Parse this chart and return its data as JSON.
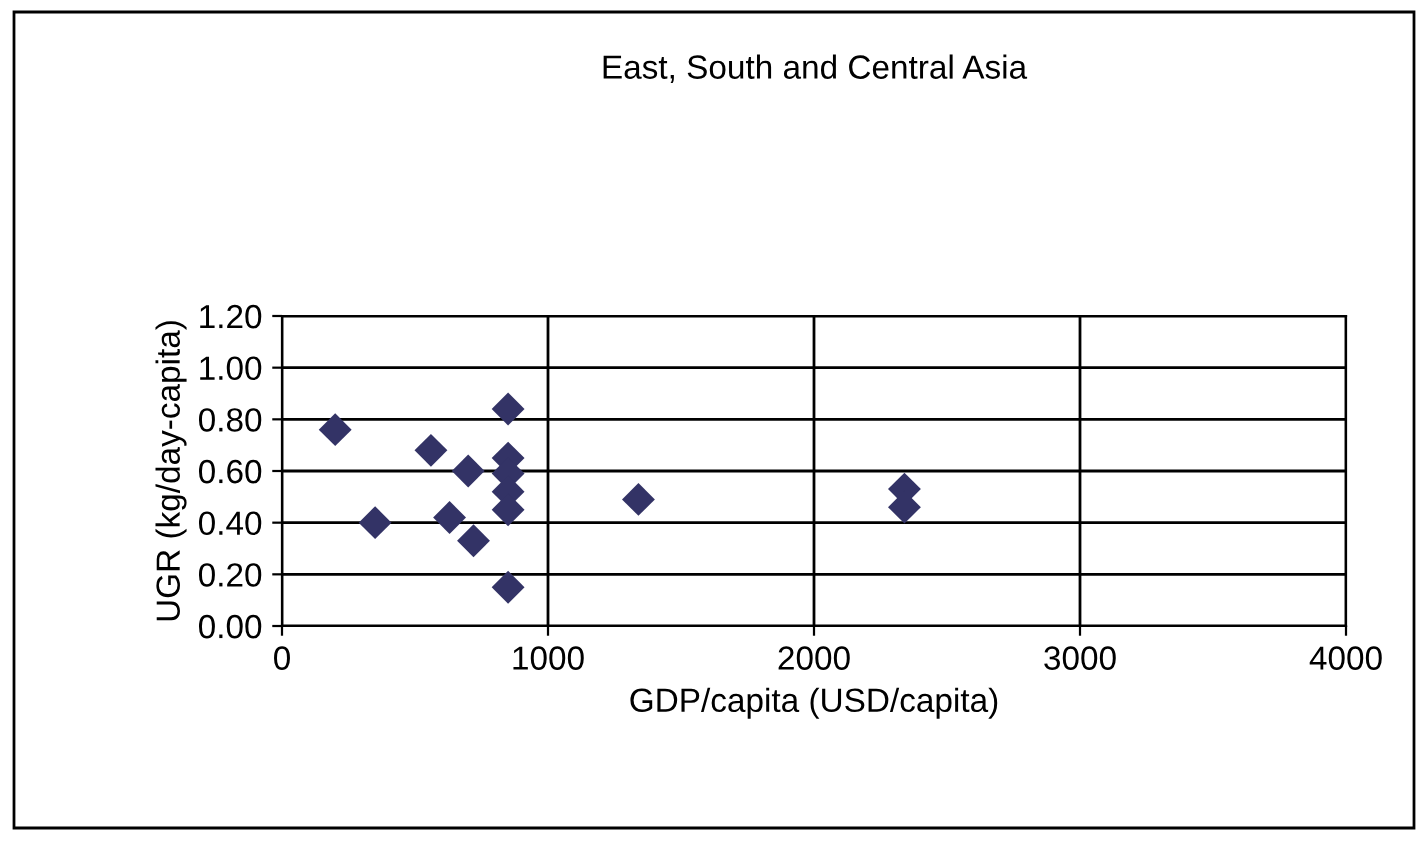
{
  "chart_data": {
    "type": "scatter",
    "title": "East, South and Central Asia",
    "xlabel": "GDP/capita (USD/capita)",
    "ylabel": "UGR (kg/day-capita)",
    "x": [
      850,
      200,
      560,
      850,
      700,
      850,
      850,
      1340,
      850,
      350,
      630,
      720,
      850,
      2340,
      2340
    ],
    "values": [
      0.84,
      0.76,
      0.68,
      0.65,
      0.6,
      0.59,
      0.52,
      0.49,
      0.45,
      0.4,
      0.42,
      0.33,
      0.15,
      0.53,
      0.46
    ],
    "color": "#333366",
    "marker": "diamond",
    "xlim": [
      0,
      4000
    ],
    "xticks": [
      0,
      1000,
      2000,
      3000,
      4000
    ],
    "ylim": [
      0,
      1.2
    ],
    "yticks": [
      {
        "value": 0,
        "label": "0.00"
      },
      {
        "value": 0.2,
        "label": "0.20"
      },
      {
        "value": 0.4,
        "label": "0.40"
      },
      {
        "value": 0.6,
        "label": "0.60"
      },
      {
        "value": 0.8,
        "label": "0.80"
      },
      {
        "value": 1.0,
        "label": "1.00"
      },
      {
        "value": 1.2,
        "label": "1.20"
      }
    ],
    "grid": true
  }
}
